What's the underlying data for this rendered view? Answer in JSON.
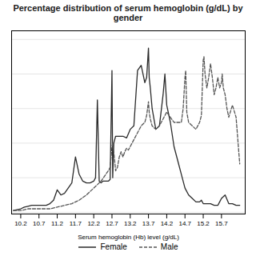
{
  "chart_data": {
    "type": "line",
    "title": "Percentage distribution of serum hemoglobin (g/dL) by gender",
    "xlabel": "Serum hemoglobin (Hb) level (g/dL)",
    "xlim": [
      9.95,
      16.35
    ],
    "xticks": [
      10.2,
      10.7,
      11.2,
      11.7,
      12.2,
      12.7,
      13.2,
      13.7,
      14.2,
      14.7,
      15.2,
      15.7
    ],
    "ylim": [
      -0.01,
      1.05
    ],
    "yticks": [
      0,
      0.2,
      0.4,
      0.6,
      0.8,
      1.0
    ],
    "tick_labels": "x",
    "grid": "y",
    "legend": "bottom",
    "series": [
      {
        "name": "Female",
        "color": "#2a2a2a",
        "line_style": "solid",
        "x": [
          10.0,
          10.2,
          10.3,
          10.4,
          10.5,
          10.6,
          10.7,
          10.8,
          10.9,
          11.0,
          11.1,
          11.2,
          11.3,
          11.4,
          11.5,
          11.6,
          11.7,
          11.8,
          11.9,
          12.0,
          12.1,
          12.2,
          12.25,
          12.3,
          12.35,
          12.4,
          12.45,
          12.5,
          12.55,
          12.6,
          12.65,
          12.7,
          12.72,
          12.75,
          12.8,
          12.9,
          13.0,
          13.1,
          13.2,
          13.3,
          13.4,
          13.5,
          13.6,
          13.65,
          13.7,
          13.72,
          13.75,
          13.8,
          13.9,
          14.0,
          14.1,
          14.15,
          14.2,
          14.3,
          14.4,
          14.5,
          14.6,
          14.7,
          14.8,
          14.9,
          15.0,
          15.1,
          15.15,
          15.2,
          15.3,
          15.4,
          15.5,
          15.6,
          15.65,
          15.7,
          15.8,
          15.9,
          16.0,
          16.1,
          16.2
        ],
        "values": [
          0.01,
          0.02,
          0.03,
          0.035,
          0.04,
          0.04,
          0.04,
          0.04,
          0.04,
          0.05,
          0.07,
          0.13,
          0.1,
          0.11,
          0.14,
          0.17,
          0.32,
          0.22,
          0.18,
          0.17,
          0.17,
          0.18,
          0.2,
          0.65,
          0.18,
          0.17,
          0.18,
          0.18,
          0.18,
          0.18,
          0.19,
          0.82,
          0.2,
          0.4,
          0.44,
          0.44,
          0.44,
          0.43,
          0.48,
          0.5,
          0.82,
          0.85,
          0.75,
          0.78,
          0.95,
          0.78,
          0.72,
          0.6,
          0.48,
          0.5,
          0.68,
          0.8,
          0.62,
          0.52,
          0.38,
          0.3,
          0.22,
          0.14,
          0.1,
          0.08,
          0.06,
          0.06,
          0.07,
          0.05,
          0.05,
          0.05,
          0.04,
          0.04,
          0.06,
          0.08,
          0.1,
          0.05,
          0.05,
          0.04,
          0.04
        ]
      },
      {
        "name": "Male",
        "color": "#555555",
        "line_style": "dashed",
        "x": [
          10.0,
          10.2,
          10.4,
          10.6,
          10.8,
          11.0,
          11.2,
          11.4,
          11.6,
          11.8,
          12.0,
          12.2,
          12.4,
          12.6,
          12.65,
          12.7,
          12.72,
          12.75,
          12.8,
          12.85,
          12.9,
          12.95,
          13.0,
          13.05,
          13.1,
          13.15,
          13.2,
          13.3,
          13.4,
          13.5,
          13.6,
          13.65,
          13.7,
          13.72,
          13.75,
          13.8,
          13.9,
          14.0,
          14.1,
          14.2,
          14.3,
          14.4,
          14.5,
          14.6,
          14.65,
          14.7,
          14.72,
          14.75,
          14.8,
          14.9,
          15.0,
          15.1,
          15.15,
          15.2,
          15.22,
          15.25,
          15.3,
          15.35,
          15.4,
          15.45,
          15.5,
          15.55,
          15.6,
          15.65,
          15.7,
          15.72,
          15.75,
          15.8,
          15.85,
          15.9,
          16.0,
          16.1,
          16.2
        ],
        "values": [
          0.01,
          0.01,
          0.02,
          0.02,
          0.02,
          0.02,
          0.03,
          0.04,
          0.05,
          0.07,
          0.1,
          0.14,
          0.18,
          0.24,
          0.26,
          0.38,
          0.4,
          0.35,
          0.24,
          0.26,
          0.32,
          0.35,
          0.32,
          0.35,
          0.37,
          0.36,
          0.38,
          0.42,
          0.46,
          0.5,
          0.52,
          0.56,
          0.64,
          0.58,
          0.54,
          0.5,
          0.48,
          0.5,
          0.54,
          0.58,
          0.55,
          0.52,
          0.52,
          0.52,
          0.6,
          0.78,
          0.82,
          0.58,
          0.52,
          0.5,
          0.48,
          0.52,
          0.56,
          0.88,
          0.9,
          0.8,
          0.72,
          0.78,
          0.86,
          0.78,
          0.68,
          0.72,
          0.78,
          0.72,
          0.75,
          0.8,
          0.72,
          0.68,
          0.6,
          0.55,
          0.62,
          0.55,
          0.28
        ]
      }
    ]
  }
}
